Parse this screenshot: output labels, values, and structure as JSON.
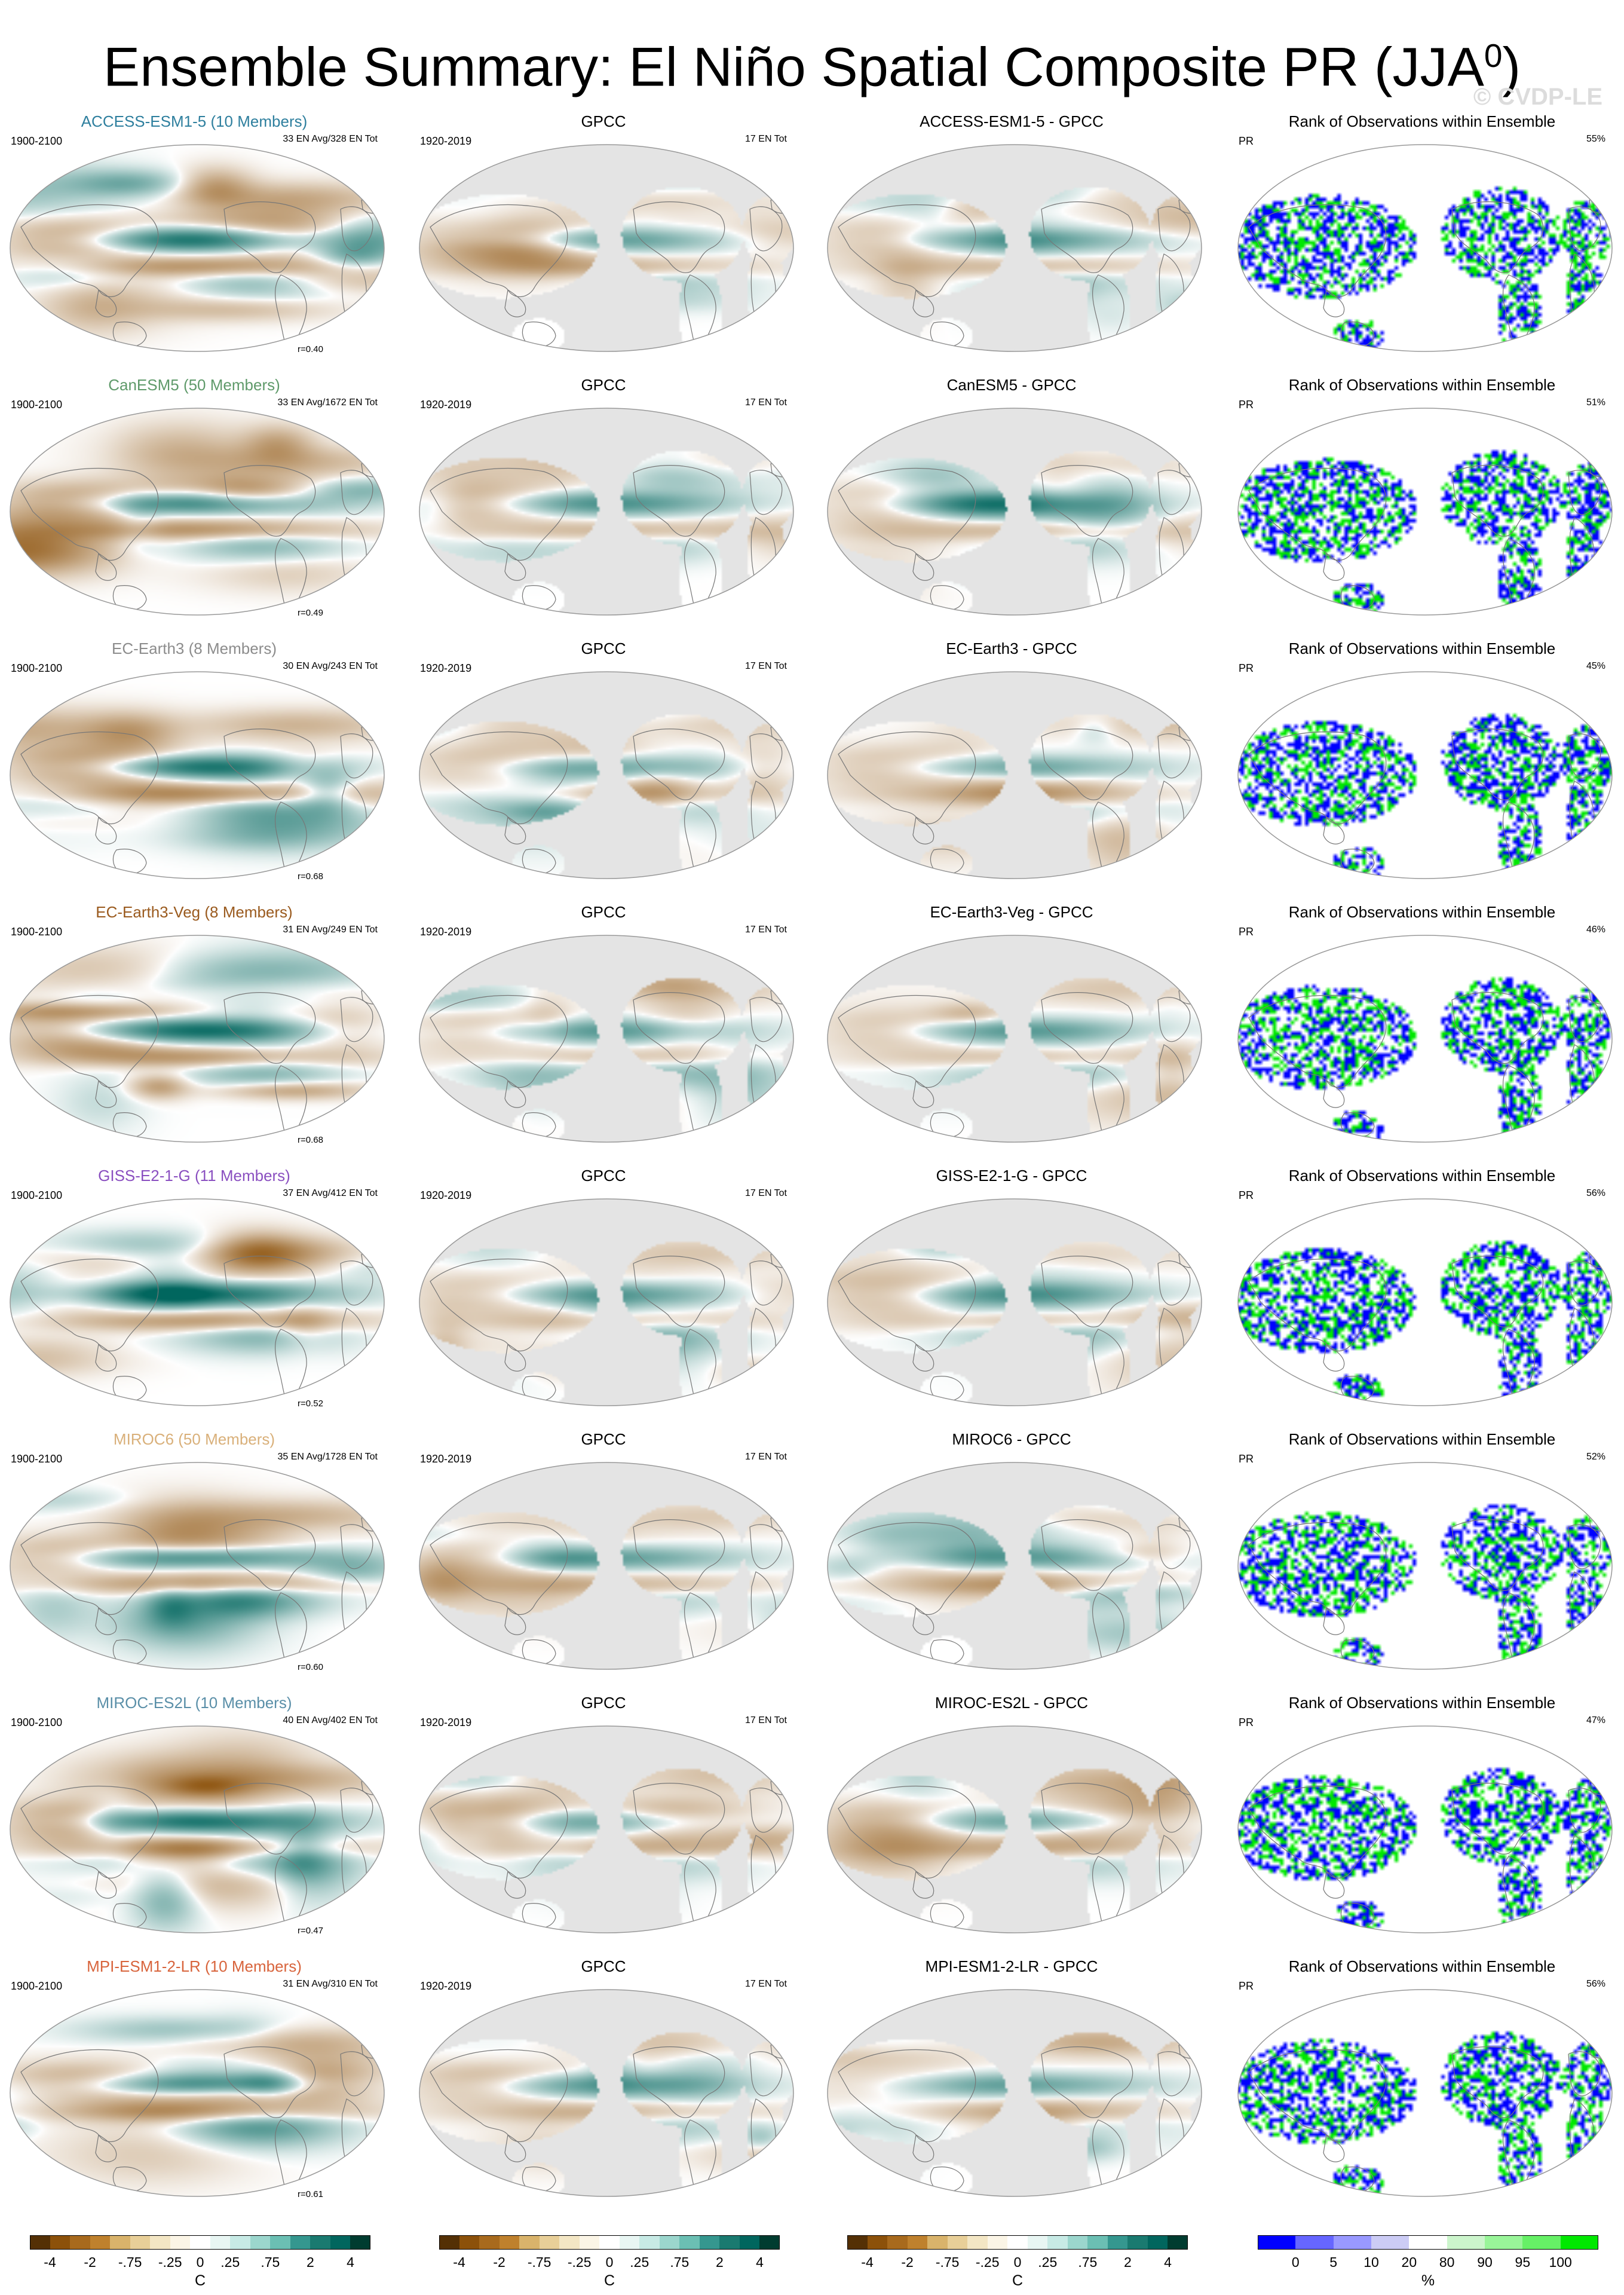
{
  "title": {
    "text": "Ensemble Summary: El Niño Spatial Composite PR (JJA",
    "sup": "0",
    "close": ")"
  },
  "watermark": "© CVDP-LE",
  "gpcc_title": "GPCC",
  "obs_period": "1920-2019",
  "obs_events": "17 EN Tot",
  "model_period": "1900-2100",
  "rank_title": "Rank of Observations within Ensemble",
  "rank_var": "PR",
  "rows": [
    {
      "model": "ACCESS-ESM1-5 (10 Members)",
      "model_color": "#2e7f9e",
      "events": "33 EN Avg/328 EN Tot",
      "r": "r=0.40",
      "diff": "ACCESS-ESM1-5 - GPCC",
      "rank_pct": "55%"
    },
    {
      "model": "CanESM5 (50 Members)",
      "model_color": "#5f9a6a",
      "events": "33 EN Avg/1672 EN Tot",
      "r": "r=0.49",
      "diff": "CanESM5 - GPCC",
      "rank_pct": "51%"
    },
    {
      "model": "EC-Earth3 (8 Members)",
      "model_color": "#8c8c8c",
      "events": "30 EN Avg/243 EN Tot",
      "r": "r=0.68",
      "diff": "EC-Earth3 - GPCC",
      "rank_pct": "45%"
    },
    {
      "model": "EC-Earth3-Veg (8 Members)",
      "model_color": "#9a5a1e",
      "events": "31 EN Avg/249 EN Tot",
      "r": "r=0.68",
      "diff": "EC-Earth3-Veg - GPCC",
      "rank_pct": "46%"
    },
    {
      "model": "GISS-E2-1-G (11 Members)",
      "model_color": "#8a4fc0",
      "events": "37 EN Avg/412 EN Tot",
      "r": "r=0.52",
      "diff": "GISS-E2-1-G - GPCC",
      "rank_pct": "56%"
    },
    {
      "model": "MIROC6 (50 Members)",
      "model_color": "#d9b07a",
      "events": "35 EN Avg/1728 EN Tot",
      "r": "r=0.60",
      "diff": "MIROC6 - GPCC",
      "rank_pct": "52%"
    },
    {
      "model": "MIROC-ES2L (10 Members)",
      "model_color": "#5a8fa8",
      "events": "40 EN Avg/402 EN Tot",
      "r": "r=0.47",
      "diff": "MIROC-ES2L - GPCC",
      "rank_pct": "47%"
    },
    {
      "model": "MPI-ESM1-2-LR (10 Members)",
      "model_color": "#d8643c",
      "events": "31 EN Avg/310 EN Tot",
      "r": "r=0.61",
      "diff": "MPI-ESM1-2-LR - GPCC",
      "rank_pct": "56%"
    }
  ],
  "colorbar": {
    "unit": "C",
    "ticks": [
      "-4",
      "-2",
      "-.75",
      "-.25",
      "0",
      ".25",
      ".75",
      "2",
      "4"
    ],
    "colors": [
      "#543005",
      "#8c510a",
      "#a86a1d",
      "#bf812d",
      "#d9b36b",
      "#e8cf98",
      "#f3e6c4",
      "#fbf5e6",
      "#ffffff",
      "#e8f6f3",
      "#c7eae5",
      "#9bd6cd",
      "#6bbfb3",
      "#35978f",
      "#1a7a70",
      "#01665e",
      "#003c30"
    ]
  },
  "rank_colorbar": {
    "unit": "%",
    "ticks": [
      "0",
      "5",
      "10",
      "20",
      "80",
      "90",
      "95",
      "100"
    ],
    "colors": [
      "#0000ff",
      "#6666ff",
      "#9999ff",
      "#ccccf5",
      "#ffffff",
      "#ccf5cc",
      "#99f599",
      "#66f066",
      "#00e800"
    ]
  },
  "colors": {
    "land_outline": "#777777",
    "obs_ocean": "#e4e4e4",
    "rank_blue": "#0000ff",
    "rank_green": "#00e800"
  }
}
